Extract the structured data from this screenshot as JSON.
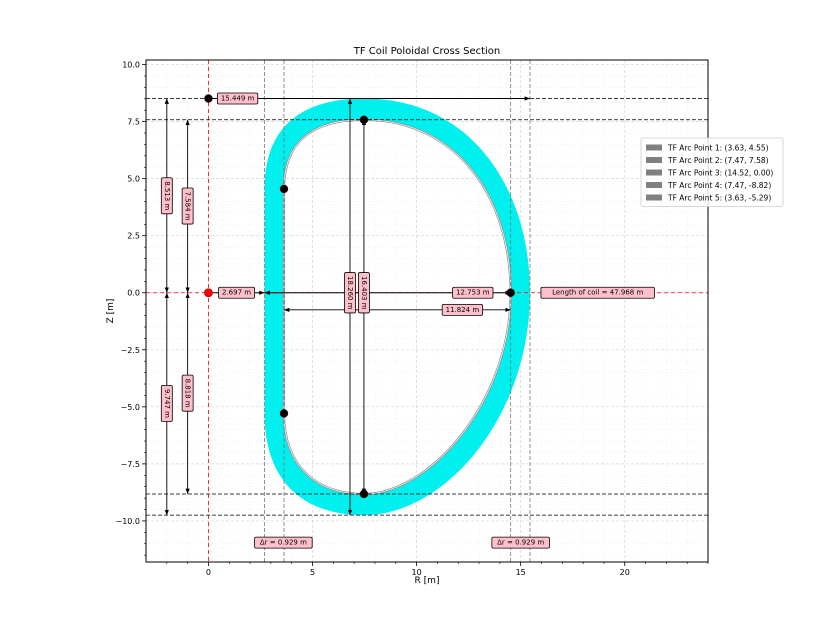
{
  "chart_data": {
    "type": "scatter",
    "title": "TF Coil Poloidal Cross Section",
    "xlabel": "R [m]",
    "ylabel": "Z [m]",
    "xlim": [
      -3,
      24
    ],
    "ylim": [
      -11.8,
      10.2
    ],
    "x_ticks": [
      0,
      5,
      10,
      15,
      20
    ],
    "x_tick_labels": [
      "0",
      "5",
      "10",
      "15",
      "20"
    ],
    "y_ticks": [
      10,
      7.5,
      5,
      2.5,
      0,
      -2.5,
      -5,
      -7.5,
      -10
    ],
    "y_tick_labels": [
      "10.0",
      "7.5",
      "5.0",
      "2.5",
      "0.0",
      "−2.5",
      "−5.0",
      "−7.5",
      "−10.0"
    ],
    "grid": true,
    "legend_position": "right",
    "colors": {
      "coil": "#00f0f0",
      "label_fill": "#ffc0cb",
      "legend_patch": "#808080",
      "points": "#000000",
      "origin": "#ff0000"
    },
    "coil": {
      "inner_straight_r": 3.63,
      "outer_straight_r": 2.697,
      "inner_top_z": 4.55,
      "inner_bottom_z": -5.29,
      "inner_max_r": 14.52,
      "outer_max_r": 15.449,
      "inner_max_z": 7.58,
      "inner_min_z": -8.82,
      "outer_max_z": 8.513,
      "outer_min_z": -9.747,
      "peak_r": 7.47
    },
    "series": [
      {
        "name": "TF Arc Point 1: (3.63, 4.55)",
        "x": 3.63,
        "y": 4.55
      },
      {
        "name": "TF Arc Point 2: (7.47, 7.58)",
        "x": 7.47,
        "y": 7.58
      },
      {
        "name": "TF Arc Point 3: (14.52, 0.00)",
        "x": 14.52,
        "y": 0.0
      },
      {
        "name": "TF Arc Point 4: (7.47, -8.82)",
        "x": 7.47,
        "y": -8.82
      },
      {
        "name": "TF Arc Point 5: (3.63, -5.29)",
        "x": 3.63,
        "y": -5.29
      }
    ],
    "extra_points": [
      {
        "x": 0,
        "y": 8.513
      },
      {
        "x": 0,
        "y": 0,
        "origin": true
      }
    ],
    "hlines": [
      8.513,
      7.58,
      -8.82,
      -9.747
    ],
    "vlines": [
      2.697,
      3.63,
      14.52,
      15.449
    ],
    "annotations": {
      "width_top": "15.449 m",
      "outer_radius": "2.697 m",
      "outer_height_top": "8.513 m",
      "inner_height_top": "7.584 m",
      "outer_height_bottom": "9.747 m",
      "inner_height_bottom": "8.818 m",
      "outer_total_height": "18.260 m",
      "inner_total_height": "16.403 m",
      "outer_width": "12.753 m",
      "inner_width": "11.824 m",
      "coil_length": "Length of coil = 47.968 m",
      "dr_left": "Δr = 0.929 m",
      "dr_right": "Δr = 0.929 m"
    }
  }
}
